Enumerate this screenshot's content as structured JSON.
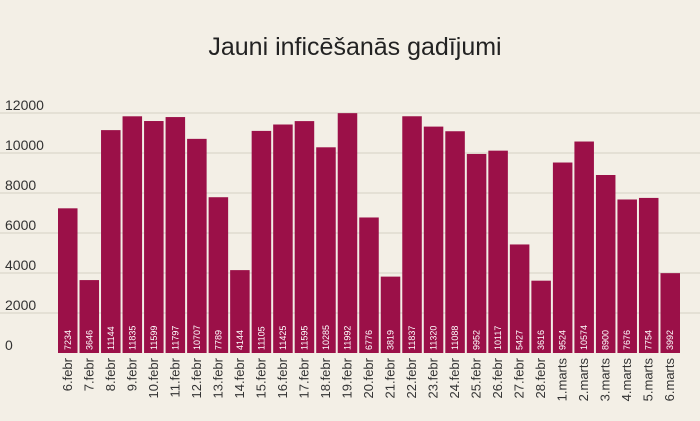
{
  "chart_data": {
    "type": "bar",
    "title": "Jauni inficēšanās gadījumi",
    "xlabel": "",
    "ylabel": "",
    "ylim": [
      0,
      12000
    ],
    "yticks": [
      0,
      2000,
      4000,
      6000,
      8000,
      10000,
      12000
    ],
    "grid": true,
    "bar_color": "#9b1048",
    "background": "#f3efe6",
    "categories": [
      "6.febr",
      "7.febr",
      "8.febr",
      "9.febr",
      "10.febr",
      "11.febr",
      "12.febr",
      "13.febr",
      "14.febr",
      "15.febr",
      "16.febr",
      "17.febr",
      "18.febr",
      "19.febr",
      "20.febr",
      "21.febr",
      "22.febr",
      "23.febr",
      "24.febr",
      "25.febr",
      "26.febr",
      "27.febr",
      "28.febr",
      "1.marts",
      "2.marts",
      "3.marts",
      "4.marts",
      "5.marts",
      "6.marts"
    ],
    "values": [
      7234,
      3646,
      11144,
      11835,
      11599,
      11797,
      10707,
      7789,
      4144,
      11105,
      11425,
      11595,
      10285,
      11992,
      6776,
      3819,
      11837,
      11320,
      11088,
      9952,
      10117,
      5427,
      3616,
      9524,
      10574,
      8900,
      7676,
      7754,
      3992
    ]
  }
}
